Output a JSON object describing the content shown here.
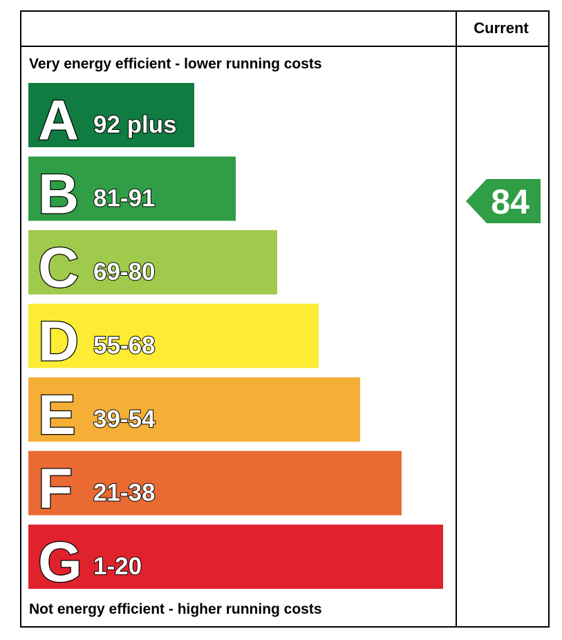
{
  "chart_data": {
    "type": "bar",
    "header": {
      "current_label": "Current"
    },
    "top_caption": "Very energy efficient - lower running costs",
    "bottom_caption": "Not energy efficient - higher running costs",
    "bands": [
      {
        "letter": "A",
        "range": "92 plus",
        "color": "#107c41"
      },
      {
        "letter": "B",
        "range": "81-91",
        "color": "#2f9e46"
      },
      {
        "letter": "C",
        "range": "69-80",
        "color": "#9fca4b"
      },
      {
        "letter": "D",
        "range": "55-68",
        "color": "#fdec33"
      },
      {
        "letter": "E",
        "range": "39-54",
        "color": "#f5ae36"
      },
      {
        "letter": "F",
        "range": "21-38",
        "color": "#ea6a33"
      },
      {
        "letter": "G",
        "range": "1-20",
        "color": "#e0222d"
      }
    ],
    "current": {
      "value": "84",
      "band": "B",
      "color": "#2f9e46"
    }
  }
}
